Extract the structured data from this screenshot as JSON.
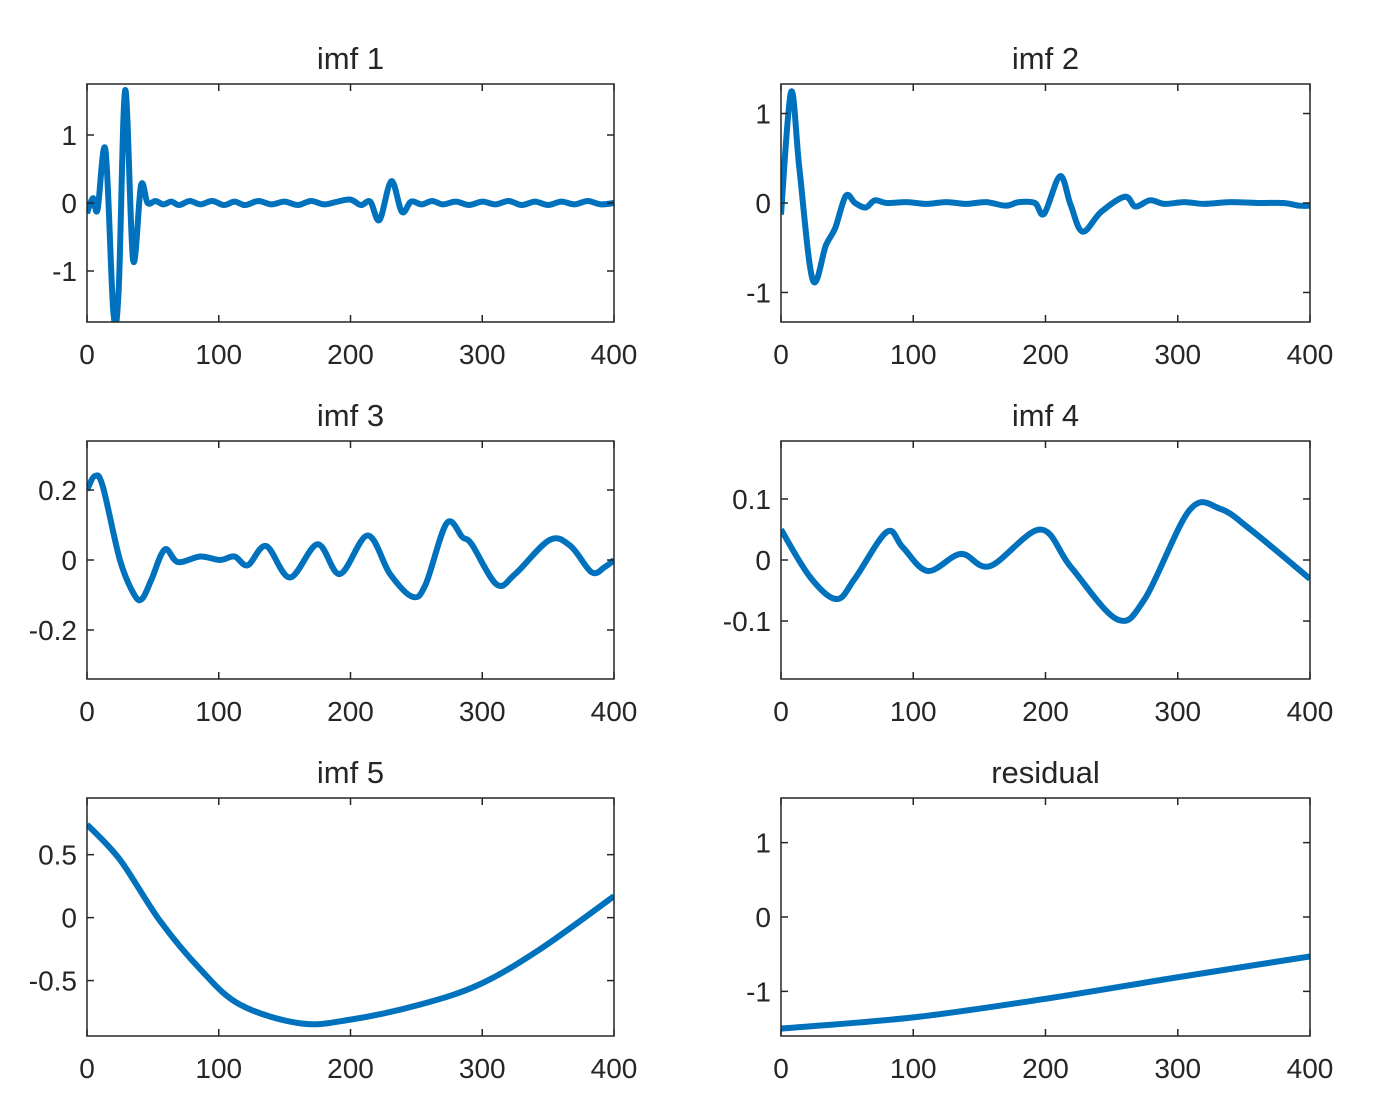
{
  "chart_data": [
    {
      "type": "line",
      "title": "imf 1",
      "xlim": [
        0,
        400
      ],
      "ylim": [
        -1.75,
        1.75
      ],
      "xticks": [
        0,
        100,
        200,
        300,
        400
      ],
      "xtick_labels": [
        "0",
        "100",
        "200",
        "300",
        "400"
      ],
      "yticks": [
        -1,
        0,
        1
      ],
      "ytick_labels": [
        "-1",
        "0",
        "1"
      ],
      "color": "#0072BD",
      "grid": false,
      "x": [
        0,
        4.5,
        8,
        14,
        20,
        24,
        29,
        35,
        41,
        46,
        52,
        58,
        64,
        70,
        78,
        86,
        95,
        104,
        112,
        120,
        130,
        140,
        150,
        160,
        170,
        180,
        190,
        200,
        208,
        215,
        222,
        231,
        239,
        246,
        254,
        262,
        270,
        280,
        290,
        300,
        310,
        320,
        330,
        340,
        350,
        360,
        370,
        380,
        390,
        400
      ],
      "y": [
        -0.15,
        0.07,
        -0.1,
        0.78,
        -1.6,
        -1.3,
        1.66,
        -0.84,
        0.26,
        0,
        0.03,
        -0.02,
        0.02,
        -0.03,
        0.03,
        -0.02,
        0.03,
        -0.03,
        0.02,
        -0.03,
        0.03,
        -0.02,
        0.02,
        -0.03,
        0.03,
        -0.02,
        0.02,
        0.05,
        -0.03,
        0.02,
        -0.25,
        0.32,
        -0.13,
        0.02,
        -0.02,
        0.03,
        -0.02,
        0.02,
        -0.03,
        0.02,
        -0.02,
        0.03,
        -0.03,
        0.02,
        -0.03,
        0.02,
        -0.02,
        0.03,
        -0.02,
        0
      ]
    },
    {
      "type": "line",
      "title": "imf 2",
      "xlim": [
        0,
        400
      ],
      "ylim": [
        -1.33,
        1.33
      ],
      "xticks": [
        0,
        100,
        200,
        300,
        400
      ],
      "xtick_labels": [
        "0",
        "100",
        "200",
        "300",
        "400"
      ],
      "yticks": [
        -1,
        0,
        1
      ],
      "ytick_labels": [
        "-1",
        "0",
        "1"
      ],
      "color": "#0072BD",
      "grid": false,
      "x": [
        0,
        7.6,
        14,
        24,
        34,
        41,
        49,
        56,
        64,
        71,
        80,
        95,
        110,
        125,
        140,
        155,
        170,
        180,
        192,
        199,
        211,
        219,
        228,
        242,
        260,
        268,
        279,
        290,
        305,
        320,
        340,
        360,
        380,
        392,
        400
      ],
      "y": [
        -0.13,
        1.24,
        0.37,
        -0.86,
        -0.47,
        -0.28,
        0.08,
        0,
        -0.05,
        0.03,
        0,
        0.01,
        -0.01,
        0.01,
        -0.01,
        0.01,
        -0.03,
        0.01,
        0,
        -0.12,
        0.3,
        -0.02,
        -0.32,
        -0.1,
        0.07,
        -0.04,
        0.03,
        -0.01,
        0.01,
        -0.01,
        0.01,
        0,
        0,
        -0.03,
        -0.03
      ]
    },
    {
      "type": "line",
      "title": "imf 3",
      "xlim": [
        0,
        400
      ],
      "ylim": [
        -0.34,
        0.34
      ],
      "xticks": [
        0,
        100,
        200,
        300,
        400
      ],
      "xtick_labels": [
        "0",
        "100",
        "200",
        "300",
        "400"
      ],
      "yticks": [
        -0.2,
        0,
        0.2
      ],
      "ytick_labels": [
        "-0.2",
        "0",
        "0.2"
      ],
      "color": "#0072BD",
      "grid": false,
      "x": [
        0,
        6,
        12,
        25,
        36,
        42,
        49,
        59,
        69,
        86,
        101,
        112,
        122,
        136,
        154,
        175,
        192,
        213,
        230,
        247,
        257,
        273,
        285,
        292,
        311,
        325,
        351,
        367,
        383,
        393,
        400
      ],
      "y": [
        0.2,
        0.24,
        0.21,
        0,
        -0.1,
        -0.11,
        -0.055,
        0.03,
        -0.006,
        0.01,
        0,
        0.01,
        -0.015,
        0.04,
        -0.05,
        0.045,
        -0.04,
        0.07,
        -0.04,
        -0.105,
        -0.07,
        0.105,
        0.065,
        0.045,
        -0.07,
        -0.04,
        0.057,
        0.04,
        -0.035,
        -0.02,
        0
      ]
    },
    {
      "type": "line",
      "title": "imf 4",
      "xlim": [
        0,
        400
      ],
      "ylim": [
        -0.195,
        0.195
      ],
      "xticks": [
        0,
        100,
        200,
        300,
        400
      ],
      "xtick_labels": [
        "0",
        "100",
        "200",
        "300",
        "400"
      ],
      "yticks": [
        -0.1,
        0,
        0.1
      ],
      "ytick_labels": [
        "-0.1",
        "0",
        "0.1"
      ],
      "color": "#0072BD",
      "grid": false,
      "x": [
        0,
        22,
        42,
        56,
        80,
        92,
        111,
        136,
        158,
        196,
        219,
        254,
        275,
        309,
        332,
        355,
        400
      ],
      "y": [
        0.05,
        -0.028,
        -0.064,
        -0.03,
        0.046,
        0.021,
        -0.018,
        0.01,
        -0.01,
        0.05,
        -0.011,
        -0.097,
        -0.064,
        0.082,
        0.084,
        0.05,
        -0.031
      ]
    },
    {
      "type": "line",
      "title": "imf 5",
      "xlim": [
        0,
        400
      ],
      "ylim": [
        -0.94,
        0.95
      ],
      "xticks": [
        0,
        100,
        200,
        300,
        400
      ],
      "xtick_labels": [
        "0",
        "100",
        "200",
        "300",
        "400"
      ],
      "yticks": [
        -0.5,
        0,
        0.5
      ],
      "ytick_labels": [
        "-0.5",
        "0",
        "0.5"
      ],
      "color": "#0072BD",
      "grid": false,
      "x": [
        0,
        25,
        55,
        86,
        116,
        162,
        200,
        253,
        298,
        344,
        400
      ],
      "y": [
        0.74,
        0.46,
        -0.02,
        -0.41,
        -0.69,
        -0.84,
        -0.81,
        -0.69,
        -0.53,
        -0.25,
        0.17
      ]
    },
    {
      "type": "line",
      "title": "residual",
      "xlim": [
        0,
        400
      ],
      "ylim": [
        -1.6,
        1.6
      ],
      "xticks": [
        0,
        100,
        200,
        300,
        400
      ],
      "xtick_labels": [
        "0",
        "100",
        "200",
        "300",
        "400"
      ],
      "yticks": [
        -1,
        0,
        1
      ],
      "ytick_labels": [
        "-1",
        "0",
        "1"
      ],
      "color": "#0072BD",
      "grid": false,
      "x": [
        0,
        100,
        200,
        300,
        400
      ],
      "y": [
        -1.5,
        -1.35,
        -1.1,
        -0.81,
        -0.53
      ]
    }
  ]
}
